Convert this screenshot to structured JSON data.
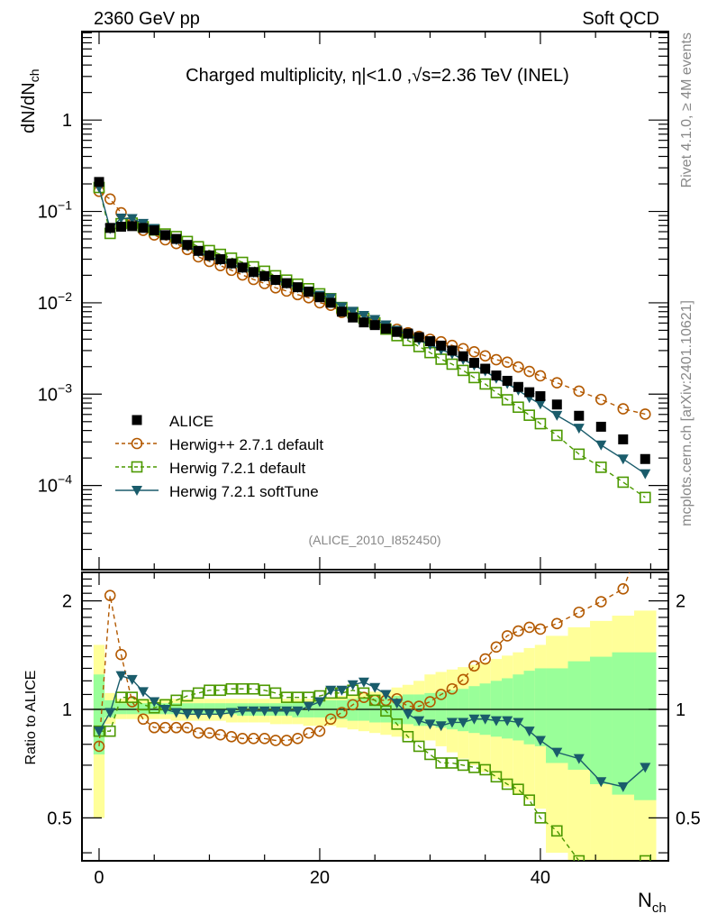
{
  "header": {
    "left": "2360 GeV pp",
    "right": "Soft QCD"
  },
  "side_text": {
    "rivet": "Rivet 4.1.0, ≥ 4M events",
    "mcplots": "mcplots.cern.ch [arXiv:2401.10621]"
  },
  "chart_data": {
    "type": "scatter",
    "title": "Charged multiplicity, η|<1.0 ,√s=2.36 TeV (INEL)",
    "analysis_id": "(ALICE_2010_I852450)",
    "xlabel": "N",
    "xlabel_sub": "ch",
    "ylabel": "dN/dN",
    "ylabel_sub": "ch",
    "ratio_ylabel": "Ratio to ALICE",
    "xlim": [
      -1.55,
      51.6
    ],
    "ylim": [
      1.2e-05,
      9.3
    ],
    "yscale": "log",
    "ratio_ylim": [
      0.38,
      2.4
    ],
    "ratio_yscale": "log",
    "x_ticks": [
      0,
      20,
      40
    ],
    "x_tick_labels": [
      "0",
      "20",
      "40"
    ],
    "y_ticks": [
      1,
      0.1,
      0.01,
      0.001,
      0.0001
    ],
    "y_tick_labels": [
      {
        "base": "1",
        "exp": ""
      },
      {
        "base": "10",
        "exp": "−1"
      },
      {
        "base": "10",
        "exp": "−2"
      },
      {
        "base": "10",
        "exp": "−3"
      },
      {
        "base": "10",
        "exp": "−4"
      }
    ],
    "ratio_ticks": [
      2,
      1,
      0.5
    ],
    "ratio_tick_labels": [
      "2",
      "1",
      "0.5"
    ],
    "legend_position": "lower-left",
    "x": [
      0,
      1,
      2,
      3,
      4,
      5,
      6,
      7,
      8,
      9,
      10,
      11,
      12,
      13,
      14,
      15,
      16,
      17,
      18,
      19,
      20,
      21,
      22,
      23,
      24,
      25,
      26,
      27,
      28,
      29,
      30,
      31,
      32,
      33,
      34,
      35,
      36,
      37,
      38,
      39,
      40,
      41.5,
      43.5,
      45.5,
      47.5,
      49.5
    ],
    "bin_half_width": [
      0.5,
      0.5,
      0.5,
      0.5,
      0.5,
      0.5,
      0.5,
      0.5,
      0.5,
      0.5,
      0.5,
      0.5,
      0.5,
      0.5,
      0.5,
      0.5,
      0.5,
      0.5,
      0.5,
      0.5,
      0.5,
      0.5,
      0.5,
      0.5,
      0.5,
      0.5,
      0.5,
      0.5,
      0.5,
      0.5,
      0.5,
      0.5,
      0.5,
      0.5,
      0.5,
      0.5,
      0.5,
      0.5,
      0.5,
      0.5,
      0.5,
      1,
      1,
      1,
      1,
      1
    ],
    "data": {
      "name": "ALICE",
      "color": "#000000",
      "marker": "filled-square",
      "values": [
        0.21,
        0.066,
        0.068,
        0.069,
        0.066,
        0.062,
        0.055,
        0.05,
        0.043,
        0.037,
        0.033,
        0.03,
        0.027,
        0.0243,
        0.0217,
        0.0196,
        0.0178,
        0.0164,
        0.0148,
        0.0132,
        0.0115,
        0.01,
        0.008,
        0.0069,
        0.0061,
        0.0057,
        0.0052,
        0.0048,
        0.0046,
        0.0042,
        0.0038,
        0.0034,
        0.003,
        0.0026,
        0.0022,
        0.0019,
        0.0016,
        0.0014,
        0.0012,
        0.00105,
        0.00095,
        0.00077,
        0.00058,
        0.00044,
        0.00032,
        0.000195
      ],
      "band_inner": {
        "color": "#99ff99",
        "upper": [
          1.25,
          1.06,
          1.04,
          1.04,
          1.04,
          1.04,
          1.04,
          1.04,
          1.04,
          1.04,
          1.04,
          1.04,
          1.04,
          1.04,
          1.04,
          1.04,
          1.04,
          1.04,
          1.05,
          1.05,
          1.05,
          1.06,
          1.06,
          1.07,
          1.07,
          1.08,
          1.08,
          1.09,
          1.1,
          1.1,
          1.11,
          1.12,
          1.13,
          1.14,
          1.16,
          1.18,
          1.2,
          1.22,
          1.25,
          1.28,
          1.3,
          1.3,
          1.36,
          1.4,
          1.44,
          1.44
        ],
        "lower": [
          0.75,
          0.95,
          0.97,
          0.97,
          0.97,
          0.97,
          0.97,
          0.97,
          0.97,
          0.97,
          0.97,
          0.97,
          0.97,
          0.96,
          0.96,
          0.96,
          0.96,
          0.96,
          0.95,
          0.95,
          0.95,
          0.94,
          0.94,
          0.93,
          0.93,
          0.92,
          0.92,
          0.91,
          0.91,
          0.9,
          0.9,
          0.89,
          0.88,
          0.87,
          0.86,
          0.85,
          0.84,
          0.83,
          0.82,
          0.8,
          0.79,
          0.71,
          0.68,
          0.62,
          0.58,
          0.56
        ]
      },
      "band_outer": {
        "color": "#ffff99",
        "upper": [
          1.51,
          1.11,
          1.07,
          1.07,
          1.07,
          1.07,
          1.07,
          1.07,
          1.07,
          1.07,
          1.07,
          1.07,
          1.07,
          1.07,
          1.07,
          1.07,
          1.07,
          1.07,
          1.07,
          1.07,
          1.07,
          1.08,
          1.09,
          1.1,
          1.11,
          1.12,
          1.13,
          1.15,
          1.17,
          1.2,
          1.25,
          1.27,
          1.29,
          1.31,
          1.33,
          1.35,
          1.38,
          1.41,
          1.44,
          1.48,
          1.51,
          1.6,
          1.69,
          1.76,
          1.82,
          1.88
        ],
        "lower": [
          0.5,
          0.91,
          0.94,
          0.94,
          0.94,
          0.94,
          0.94,
          0.93,
          0.93,
          0.93,
          0.93,
          0.93,
          0.92,
          0.92,
          0.92,
          0.92,
          0.91,
          0.91,
          0.91,
          0.9,
          0.9,
          0.9,
          0.89,
          0.88,
          0.87,
          0.86,
          0.85,
          0.84,
          0.83,
          0.82,
          0.82,
          0.79,
          0.76,
          0.73,
          0.7,
          0.67,
          0.64,
          0.61,
          0.58,
          0.56,
          0.53,
          0.4,
          0.38,
          0.38,
          0.38,
          0.38
        ]
      }
    },
    "series": [
      {
        "name": "Herwig++ 2.7.1 default",
        "color": "#b35900",
        "marker": "open-circle",
        "line": "dashed",
        "ratio": [
          0.79,
          2.07,
          1.42,
          1.05,
          0.94,
          0.89,
          0.89,
          0.89,
          0.89,
          0.86,
          0.86,
          0.85,
          0.84,
          0.83,
          0.83,
          0.83,
          0.82,
          0.82,
          0.83,
          0.86,
          0.87,
          0.94,
          0.98,
          1.03,
          1.08,
          1.06,
          1.06,
          1.07,
          1.02,
          1.02,
          1.05,
          1.1,
          1.14,
          1.21,
          1.32,
          1.38,
          1.49,
          1.6,
          1.65,
          1.69,
          1.67,
          1.73,
          1.86,
          1.99,
          2.16,
          3.1
        ]
      },
      {
        "name": "Herwig 7.2.1 default",
        "color": "#4c9900",
        "marker": "open-square",
        "line": "dashed",
        "ratio": [
          0.87,
          0.87,
          1.08,
          1.08,
          1.03,
          1.01,
          1.03,
          1.06,
          1.09,
          1.11,
          1.13,
          1.13,
          1.14,
          1.14,
          1.14,
          1.13,
          1.11,
          1.08,
          1.08,
          1.08,
          1.09,
          1.11,
          1.11,
          1.13,
          1.11,
          1.06,
          0.99,
          0.91,
          0.84,
          0.79,
          0.75,
          0.71,
          0.71,
          0.7,
          0.69,
          0.68,
          0.65,
          0.62,
          0.6,
          0.56,
          0.5,
          0.46,
          0.38,
          0.36,
          0.34,
          0.38
        ]
      },
      {
        "name": "Herwig 7.2.1 softTune",
        "color": "#1a5c6b",
        "marker": "filled-triangle-down",
        "line": "solid",
        "ratio": [
          0.87,
          0.98,
          1.24,
          1.21,
          1.12,
          1.05,
          1.0,
          0.98,
          0.97,
          0.97,
          0.97,
          0.97,
          0.98,
          0.99,
          0.99,
          0.99,
          0.99,
          0.99,
          0.99,
          1.02,
          1.05,
          1.13,
          1.13,
          1.17,
          1.19,
          1.15,
          1.1,
          1.04,
          0.97,
          0.93,
          0.91,
          0.9,
          0.92,
          0.92,
          0.94,
          0.94,
          0.93,
          0.93,
          0.92,
          0.87,
          0.82,
          0.76,
          0.73,
          0.63,
          0.61,
          0.69
        ]
      }
    ]
  }
}
